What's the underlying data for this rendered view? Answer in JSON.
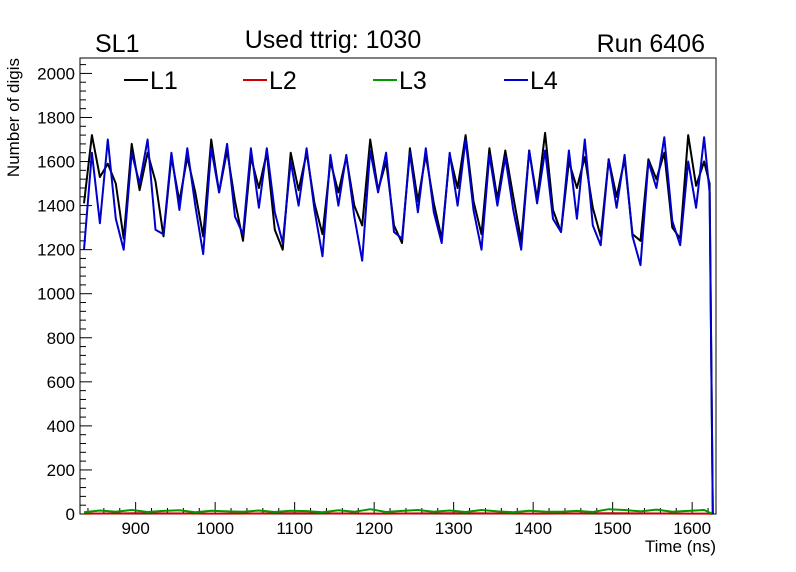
{
  "header": {
    "left_label": "SL1",
    "center_label": "Used ttrig: 1030",
    "right_label": "Run 6406"
  },
  "chart_data": {
    "type": "line",
    "xlabel": "Time (ns)",
    "ylabel": "Number of digis",
    "xlim": [
      830,
      1630
    ],
    "ylim": [
      0,
      2070
    ],
    "x_ticks": [
      900,
      1000,
      1100,
      1200,
      1300,
      1400,
      1500,
      1600
    ],
    "y_ticks": [
      0,
      200,
      400,
      600,
      800,
      1000,
      1200,
      1400,
      1600,
      1800,
      2000
    ],
    "grid": false,
    "legend_placement": "top-left, horizontal",
    "series": [
      {
        "name": "L1",
        "color": "#000000",
        "x": [
          835,
          845,
          855,
          865,
          875,
          885,
          895,
          905,
          915,
          925,
          935,
          945,
          955,
          965,
          975,
          985,
          995,
          1005,
          1015,
          1025,
          1035,
          1045,
          1055,
          1065,
          1075,
          1085,
          1095,
          1105,
          1115,
          1125,
          1135,
          1145,
          1155,
          1165,
          1175,
          1185,
          1195,
          1205,
          1215,
          1225,
          1235,
          1245,
          1255,
          1265,
          1275,
          1285,
          1295,
          1305,
          1315,
          1325,
          1335,
          1345,
          1355,
          1365,
          1375,
          1385,
          1395,
          1405,
          1415,
          1425,
          1435,
          1445,
          1455,
          1465,
          1475,
          1485,
          1495,
          1505,
          1515,
          1525,
          1535,
          1545,
          1555,
          1565,
          1575,
          1585,
          1595,
          1605,
          1615,
          1622,
          1626
        ],
        "values": [
          1410,
          1720,
          1530,
          1590,
          1500,
          1250,
          1680,
          1470,
          1640,
          1510,
          1260,
          1620,
          1420,
          1620,
          1460,
          1260,
          1700,
          1460,
          1650,
          1420,
          1240,
          1620,
          1480,
          1640,
          1290,
          1200,
          1640,
          1470,
          1640,
          1410,
          1270,
          1600,
          1460,
          1620,
          1400,
          1310,
          1700,
          1470,
          1600,
          1310,
          1230,
          1660,
          1420,
          1630,
          1410,
          1250,
          1630,
          1480,
          1720,
          1420,
          1270,
          1660,
          1430,
          1650,
          1440,
          1240,
          1650,
          1430,
          1730,
          1380,
          1280,
          1600,
          1480,
          1620,
          1390,
          1260,
          1610,
          1440,
          1610,
          1270,
          1240,
          1610,
          1520,
          1640,
          1300,
          1250,
          1720,
          1490,
          1600,
          1500,
          0
        ]
      },
      {
        "name": "L2",
        "color": "#cc0000",
        "x": [
          835,
          900,
          1000,
          1100,
          1200,
          1300,
          1400,
          1500,
          1600,
          1622,
          1626
        ],
        "values": [
          2,
          3,
          2,
          3,
          2,
          3,
          2,
          3,
          2,
          2,
          0
        ]
      },
      {
        "name": "L3",
        "color": "#009900",
        "x": [
          835,
          855,
          875,
          895,
          915,
          935,
          955,
          975,
          995,
          1015,
          1035,
          1055,
          1075,
          1095,
          1115,
          1135,
          1155,
          1175,
          1195,
          1215,
          1235,
          1255,
          1275,
          1295,
          1315,
          1335,
          1355,
          1375,
          1395,
          1415,
          1435,
          1455,
          1475,
          1495,
          1515,
          1535,
          1555,
          1575,
          1595,
          1615,
          1626
        ],
        "values": [
          8,
          16,
          10,
          18,
          9,
          14,
          17,
          8,
          15,
          12,
          10,
          16,
          9,
          15,
          13,
          8,
          17,
          10,
          22,
          9,
          14,
          18,
          10,
          16,
          9,
          18,
          12,
          8,
          15,
          11,
          10,
          14,
          9,
          22,
          18,
          12,
          20,
          10,
          14,
          18,
          0
        ]
      },
      {
        "name": "L4",
        "color": "#0000cc",
        "x": [
          835,
          845,
          855,
          865,
          875,
          885,
          895,
          905,
          915,
          925,
          935,
          945,
          955,
          965,
          975,
          985,
          995,
          1005,
          1015,
          1025,
          1035,
          1045,
          1055,
          1065,
          1075,
          1085,
          1095,
          1105,
          1115,
          1125,
          1135,
          1145,
          1155,
          1165,
          1175,
          1185,
          1195,
          1205,
          1215,
          1225,
          1235,
          1245,
          1255,
          1265,
          1275,
          1285,
          1295,
          1305,
          1315,
          1325,
          1335,
          1345,
          1355,
          1365,
          1375,
          1385,
          1395,
          1405,
          1415,
          1425,
          1435,
          1445,
          1455,
          1465,
          1475,
          1485,
          1495,
          1505,
          1515,
          1525,
          1535,
          1545,
          1555,
          1565,
          1575,
          1585,
          1595,
          1605,
          1615,
          1622,
          1626
        ],
        "values": [
          1200,
          1640,
          1320,
          1700,
          1340,
          1200,
          1640,
          1500,
          1700,
          1290,
          1270,
          1640,
          1380,
          1660,
          1400,
          1180,
          1660,
          1460,
          1680,
          1350,
          1270,
          1660,
          1390,
          1660,
          1370,
          1230,
          1600,
          1400,
          1660,
          1380,
          1170,
          1630,
          1400,
          1630,
          1350,
          1150,
          1650,
          1460,
          1640,
          1280,
          1250,
          1640,
          1370,
          1660,
          1370,
          1230,
          1640,
          1400,
          1700,
          1380,
          1200,
          1630,
          1400,
          1620,
          1380,
          1200,
          1650,
          1410,
          1650,
          1340,
          1280,
          1650,
          1340,
          1700,
          1310,
          1220,
          1610,
          1390,
          1630,
          1260,
          1130,
          1600,
          1480,
          1710,
          1330,
          1220,
          1600,
          1390,
          1710,
          1460,
          0
        ]
      }
    ]
  }
}
